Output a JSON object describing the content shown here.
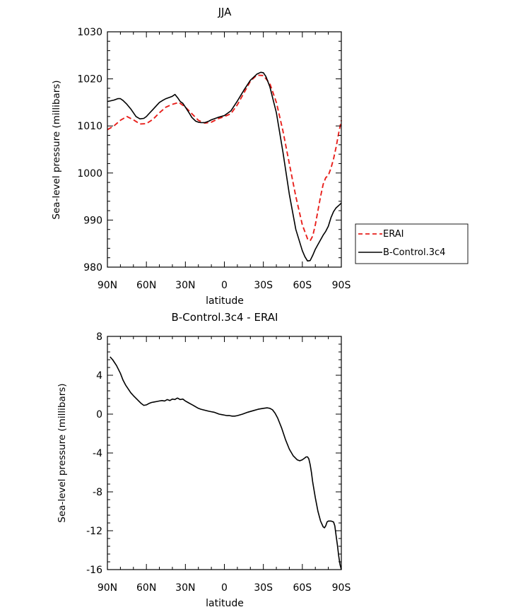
{
  "chart_data": [
    {
      "type": "line",
      "title": "JJA",
      "xlabel": "latitude",
      "ylabel": "Sea-level pressure (millibars)",
      "xlim": [
        90,
        -90
      ],
      "ylim": [
        980,
        1030
      ],
      "xticks": [
        90,
        60,
        30,
        0,
        -30,
        -60,
        -90
      ],
      "xticklabels": [
        "90N",
        "60N",
        "30N",
        "0",
        "30S",
        "60S",
        "90S"
      ],
      "yticks": [
        980,
        990,
        1000,
        1010,
        1020,
        1030
      ],
      "yticklabels": [
        "980",
        "990",
        "1000",
        "1010",
        "1020",
        "1030"
      ],
      "legend": {
        "position": "right",
        "entries": [
          "ERAI",
          "B-Control.3c4"
        ]
      },
      "series": [
        {
          "name": "ERAI",
          "color": "#e8201c",
          "dash": "dashed",
          "x": [
            90,
            85,
            80,
            75,
            70,
            65,
            60,
            55,
            50,
            45,
            40,
            35,
            30,
            25,
            20,
            15,
            10,
            5,
            0,
            -5,
            -10,
            -15,
            -20,
            -25,
            -30,
            -35,
            -40,
            -45,
            -50,
            -55,
            -60,
            -62,
            -64,
            -66,
            -68,
            -70,
            -72,
            -74,
            -76,
            -78,
            -80,
            -82,
            -84,
            -86,
            -88,
            -90
          ],
          "y": [
            1009.2,
            1010.0,
            1011.2,
            1012.0,
            1011.3,
            1010.4,
            1010.5,
            1011.4,
            1012.8,
            1014.0,
            1014.6,
            1015.0,
            1014.0,
            1012.6,
            1011.2,
            1010.6,
            1010.8,
            1011.5,
            1012.0,
            1012.6,
            1014.5,
            1017.0,
            1019.5,
            1020.8,
            1020.7,
            1019.0,
            1015.0,
            1009.0,
            1002.0,
            995.0,
            989.0,
            987.5,
            986.0,
            985.6,
            986.6,
            989.0,
            992.0,
            995.0,
            997.6,
            999.0,
            999.5,
            1001.0,
            1003.0,
            1005.5,
            1008.5,
            1011.2
          ]
        },
        {
          "name": "B-Control.3c4",
          "color": "#000000",
          "dash": "solid",
          "x": [
            90,
            88,
            85,
            82,
            80,
            78,
            75,
            72,
            70,
            68,
            65,
            62,
            60,
            58,
            55,
            52,
            50,
            47,
            45,
            42,
            40,
            38,
            36,
            34,
            32,
            30,
            27,
            25,
            22,
            20,
            18,
            15,
            12,
            10,
            5,
            0,
            -5,
            -10,
            -15,
            -20,
            -25,
            -28,
            -30,
            -32,
            -35,
            -40,
            -45,
            -50,
            -55,
            -60,
            -62,
            -64,
            -66,
            -68,
            -70,
            -72,
            -74,
            -76,
            -78,
            -80,
            -82,
            -84,
            -86,
            -88,
            -90
          ],
          "y": [
            1015.2,
            1015.3,
            1015.5,
            1015.8,
            1015.8,
            1015.4,
            1014.6,
            1013.6,
            1012.8,
            1012.0,
            1011.5,
            1011.6,
            1012.0,
            1012.6,
            1013.5,
            1014.4,
            1015.0,
            1015.5,
            1015.8,
            1016.1,
            1016.3,
            1016.7,
            1016.0,
            1015.2,
            1014.8,
            1014.0,
            1012.7,
            1011.8,
            1011.0,
            1010.8,
            1010.7,
            1010.7,
            1011.0,
            1011.3,
            1011.8,
            1012.2,
            1013.2,
            1015.3,
            1017.6,
            1019.7,
            1021.0,
            1021.4,
            1021.3,
            1020.5,
            1018.3,
            1012.8,
            1004.5,
            995.5,
            988.0,
            983.5,
            982.2,
            981.3,
            981.4,
            982.5,
            983.8,
            984.8,
            985.8,
            986.8,
            987.6,
            988.7,
            990.5,
            991.8,
            992.6,
            993.1,
            993.6
          ]
        }
      ]
    },
    {
      "type": "line",
      "title": "B-Control.3c4 - ERAI",
      "xlabel": "latitude",
      "ylabel": "Sea-level pressure (millibars)",
      "xlim": [
        90,
        -90
      ],
      "ylim": [
        -16,
        8
      ],
      "xticks": [
        90,
        60,
        30,
        0,
        -30,
        -60,
        -90
      ],
      "xticklabels": [
        "90N",
        "60N",
        "30N",
        "0",
        "30S",
        "60S",
        "90S"
      ],
      "yticks": [
        -16,
        -12,
        -8,
        -4,
        0,
        4,
        8
      ],
      "yticklabels": [
        "-16",
        "-12",
        "-8",
        "-4",
        "0",
        "4",
        "8"
      ],
      "series": [
        {
          "name": "B-Control.3c4 - ERAI",
          "color": "#000000",
          "dash": "solid",
          "x": [
            88,
            86,
            83,
            80,
            78,
            76,
            74,
            72,
            70,
            67,
            64,
            62,
            60,
            58,
            56,
            54,
            52,
            50,
            48,
            46,
            44,
            42,
            40,
            38,
            37,
            36,
            34,
            32,
            30,
            28,
            26,
            24,
            22,
            20,
            18,
            15,
            12,
            10,
            8,
            6,
            4,
            2,
            0,
            -2,
            -4,
            -6,
            -8,
            -10,
            -14,
            -18,
            -22,
            -26,
            -30,
            -33,
            -35,
            -37,
            -39,
            -41,
            -44,
            -47,
            -50,
            -53,
            -56,
            -58,
            -60,
            -62,
            -63,
            -64,
            -65,
            -66,
            -67,
            -68,
            -70,
            -72,
            -74,
            -76,
            -77,
            -78,
            -79,
            -80,
            -81,
            -82,
            -83,
            -84,
            -85,
            -86,
            -87,
            -88,
            -89,
            -90
          ],
          "y": [
            5.9,
            5.6,
            5.0,
            4.2,
            3.5,
            3.0,
            2.6,
            2.2,
            1.9,
            1.5,
            1.1,
            0.9,
            0.95,
            1.1,
            1.2,
            1.25,
            1.3,
            1.35,
            1.4,
            1.35,
            1.5,
            1.4,
            1.55,
            1.5,
            1.6,
            1.65,
            1.5,
            1.55,
            1.35,
            1.2,
            1.05,
            0.9,
            0.75,
            0.6,
            0.5,
            0.4,
            0.3,
            0.25,
            0.2,
            0.1,
            0.0,
            -0.05,
            -0.1,
            -0.15,
            -0.15,
            -0.2,
            -0.2,
            -0.15,
            0.0,
            0.2,
            0.35,
            0.5,
            0.6,
            0.65,
            0.6,
            0.45,
            0.1,
            -0.4,
            -1.4,
            -2.6,
            -3.6,
            -4.3,
            -4.7,
            -4.8,
            -4.7,
            -4.5,
            -4.4,
            -4.4,
            -4.6,
            -5.2,
            -6.0,
            -7.0,
            -8.6,
            -10.0,
            -11.0,
            -11.6,
            -11.7,
            -11.5,
            -11.1,
            -11.0,
            -11.0,
            -11.0,
            -11.05,
            -11.1,
            -11.5,
            -12.5,
            -13.5,
            -14.6,
            -15.5,
            -16.0
          ]
        }
      ]
    }
  ]
}
